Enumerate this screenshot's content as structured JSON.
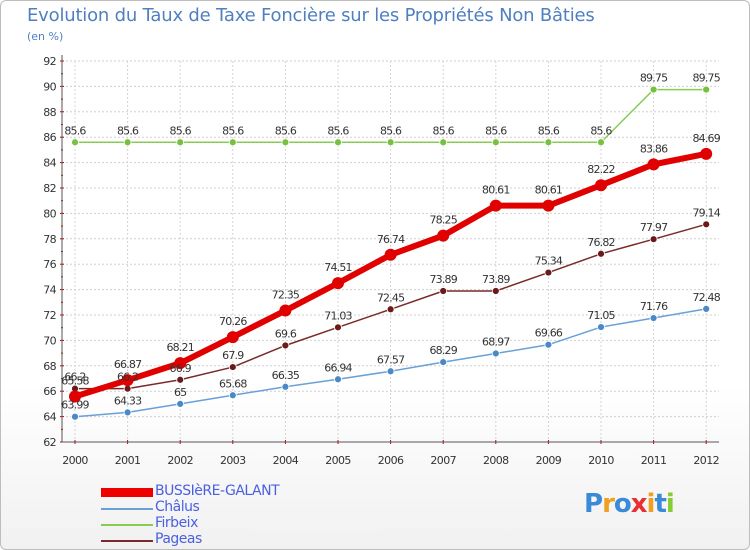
{
  "title": "Evolution du Taux de Taxe Foncière sur les Propriétés Non Bâties",
  "unit": "(en %)",
  "chart_data": {
    "type": "line",
    "title": "Evolution du Taux de Taxe Foncière sur les Propriétés Non Bâties",
    "ylabel": "(en %)",
    "xlabel": "",
    "x": [
      "2000",
      "2001",
      "2002",
      "2003",
      "2004",
      "2005",
      "2006",
      "2007",
      "2008",
      "2009",
      "2010",
      "2011",
      "2012"
    ],
    "ylim": [
      62,
      92
    ],
    "yticks": [
      62,
      64,
      66,
      68,
      70,
      72,
      74,
      76,
      78,
      80,
      82,
      84,
      86,
      88,
      90,
      92
    ],
    "grid": true,
    "legend_position": "bottom-left",
    "series": [
      {
        "name": "BUSSIèRE-GALANT",
        "color": "#ee0000",
        "labels": [
          "65.58",
          "66.87",
          "68.21",
          "70.26",
          "72.35",
          "74.51",
          "76.74",
          "78.25",
          "80.61",
          "80.61",
          "82.22",
          "83.86",
          "84.69"
        ],
        "values": [
          65.58,
          66.87,
          68.21,
          70.26,
          72.35,
          74.51,
          76.74,
          78.25,
          80.61,
          80.61,
          82.22,
          83.86,
          84.69
        ]
      },
      {
        "name": "Châlus",
        "color": "#6aa0d8",
        "labels": [
          "63.99",
          "64.33",
          "65",
          "65.68",
          "66.35",
          "66.94",
          "67.57",
          "68.29",
          "68.97",
          "69.66",
          "71.05",
          "71.76",
          "72.48"
        ],
        "values": [
          63.99,
          64.33,
          65.0,
          65.68,
          66.35,
          66.94,
          67.57,
          68.29,
          68.97,
          69.66,
          71.05,
          71.76,
          72.48
        ]
      },
      {
        "name": "Firbeix",
        "color": "#88cc55",
        "labels": [
          "85.6",
          "85.6",
          "85.6",
          "85.6",
          "85.6",
          "85.6",
          "85.6",
          "85.6",
          "85.6",
          "85.6",
          "85.6",
          "89.75",
          "89.75"
        ],
        "values": [
          85.6,
          85.6,
          85.6,
          85.6,
          85.6,
          85.6,
          85.6,
          85.6,
          85.6,
          85.6,
          85.6,
          89.75,
          89.75
        ]
      },
      {
        "name": "Pageas",
        "color": "#7a2a2a",
        "labels": [
          "66.2",
          "66.2",
          "66.9",
          "67.9",
          "69.6",
          "71.03",
          "72.45",
          "73.89",
          "73.89",
          "75.34",
          "76.82",
          "77.97",
          "79.14"
        ],
        "values": [
          66.2,
          66.2,
          66.9,
          67.9,
          69.6,
          71.03,
          72.45,
          73.89,
          73.89,
          75.34,
          76.82,
          77.97,
          79.14
        ]
      }
    ]
  },
  "logo": {
    "text": "Proxiti",
    "colors": [
      "#3a8ad8",
      "#f0a020",
      "#3a8ad8",
      "#e83030",
      "#f0a020",
      "#3a8ad8",
      "#88cc33"
    ]
  }
}
